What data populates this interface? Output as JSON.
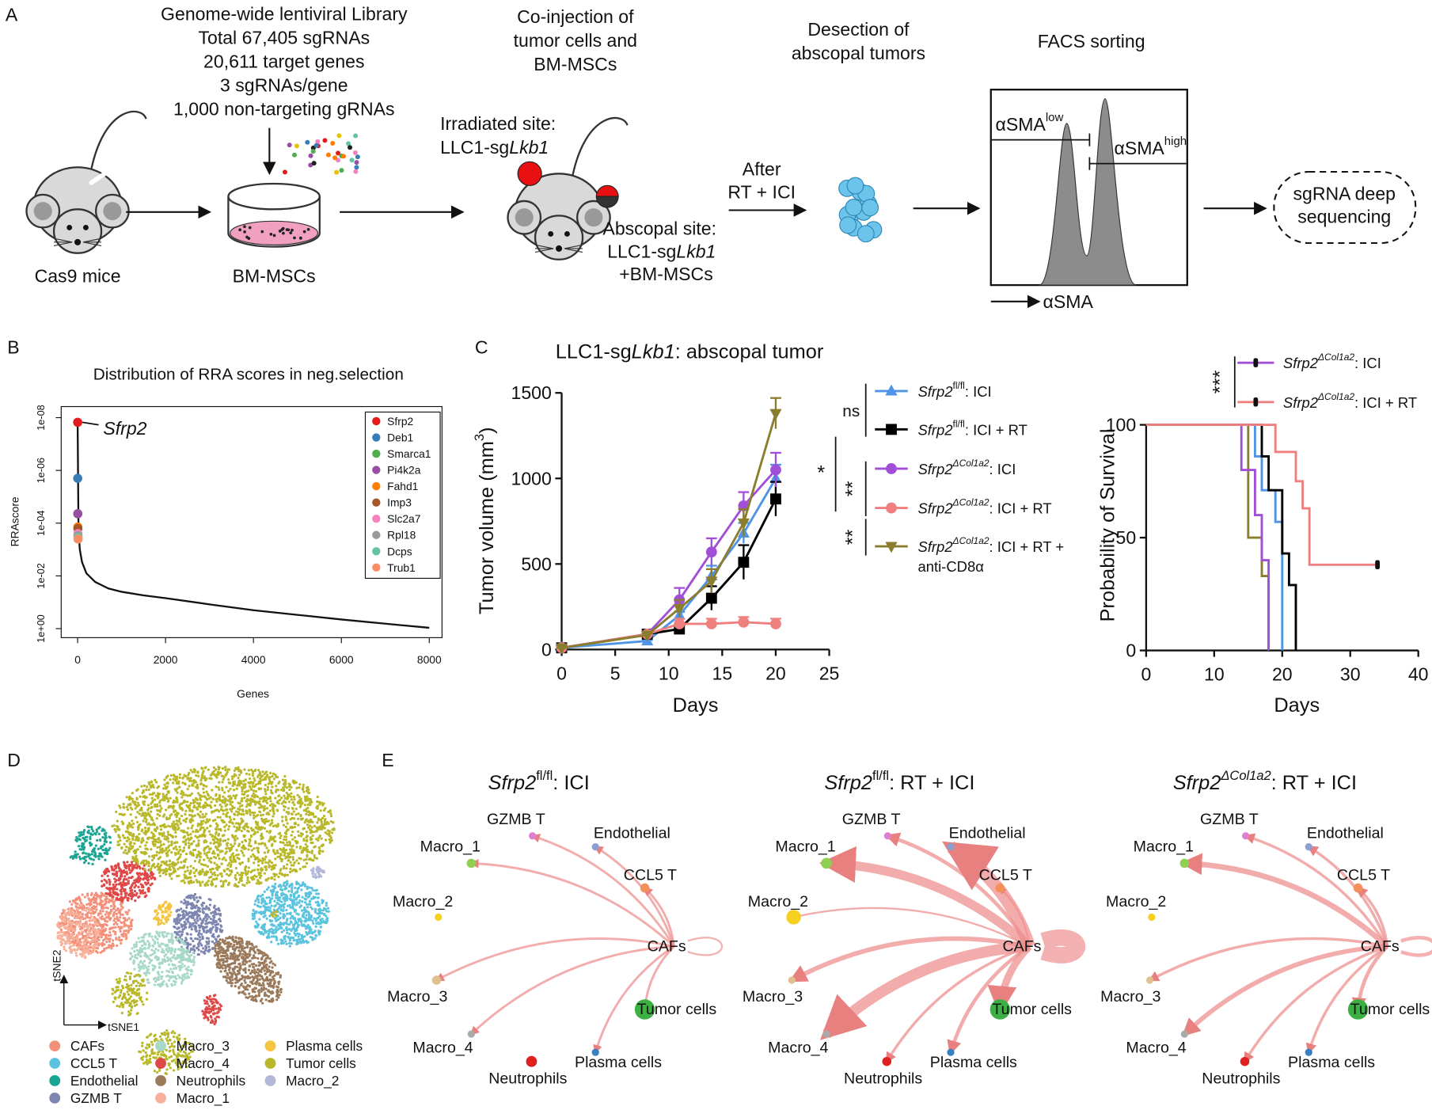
{
  "panel_labels": [
    "A",
    "B",
    "C",
    "D",
    "E"
  ],
  "panel_a": {
    "library": [
      "Genome-wide lentiviral Library",
      "Total 67,405 sgRNAs",
      "20,611 target genes",
      "3 sgRNAs/gene",
      "1,000 non-targeting gRNAs"
    ],
    "cas9": "Cas9 mice",
    "bm": "BM-MSCs",
    "coinjection": [
      "Co-injection of",
      "tumor cells and",
      "BM-MSCs"
    ],
    "irradiated": {
      "label": "Irradiated site:",
      "line": [
        {
          "text": "LLC1-sg"
        },
        {
          "text": "Lkb1",
          "style": "italic"
        }
      ]
    },
    "abscopal": {
      "label": "Abscopal site:",
      "line": [
        {
          "text": "LLC1-sg"
        },
        {
          "text": "Lkb1",
          "style": "italic"
        }
      ],
      "extra": "+BM-MSCs"
    },
    "after": [
      "After",
      "RT + ICI"
    ],
    "dissection": [
      "Desection of",
      "abscopal tumors"
    ],
    "facs": {
      "title": "FACS sorting",
      "low": [
        {
          "text": "αSMA"
        },
        {
          "text": "low",
          "style": "sup"
        }
      ],
      "high": [
        {
          "text": "αSMA"
        },
        {
          "text": "high",
          "style": "sup"
        }
      ],
      "gate_color": "#d62a1e",
      "axis": "αSMA"
    },
    "sequencing": [
      "sgRNA deep",
      "sequencing"
    ]
  },
  "chart_data": [
    {
      "type": "rank",
      "title": "Distribution of RRA scores in neg.selection",
      "xlabel": "Genes",
      "ylabel": "RRAscore",
      "log_y": true,
      "xlim": [
        -374,
        8290
      ],
      "xticks": [
        0,
        2000,
        4000,
        6000,
        8000
      ],
      "ylim": [
        2.2,
        3.8e-09
      ],
      "yticks": [
        {
          "value": 1e-08,
          "label": "1e-08"
        },
        {
          "value": 1e-06,
          "label": "1e-06"
        },
        {
          "value": 0.0001,
          "label": "1e-04"
        },
        {
          "value": 0.01,
          "label": "1e-02"
        },
        {
          "value": 1,
          "label": "1e+00"
        }
      ],
      "curve": {
        "x": [
          0,
          20,
          50,
          100,
          200,
          400,
          700,
          1000,
          1500,
          2000,
          3000,
          4000,
          5000,
          6000,
          7000,
          8000
        ],
        "values": [
          1.5e-08,
          0.0002,
          0.001,
          0.003,
          0.008,
          0.017,
          0.03,
          0.04,
          0.055,
          0.07,
          0.12,
          0.2,
          0.3,
          0.45,
          0.65,
          0.93
        ]
      },
      "series": [
        {
          "name": "Sfrp2",
          "color": "#e41a1c",
          "x": [
            1
          ],
          "values": [
            1.5e-08
          ]
        },
        {
          "name": "Deb1",
          "color": "#377eb8",
          "x": [
            2
          ],
          "values": [
            2e-06
          ]
        },
        {
          "name": "Smarca1",
          "color": "#4daf4a",
          "x": [
            3
          ],
          "values": [
            4.4e-05
          ]
        },
        {
          "name": "Pi4k2a",
          "color": "#984ea3",
          "x": [
            4
          ],
          "values": [
            4.4e-05
          ]
        },
        {
          "name": "Fahd1",
          "color": "#ff7f00",
          "x": [
            5
          ],
          "values": [
            0.00014
          ]
        },
        {
          "name": "Imp3",
          "color": "#a65628",
          "x": [
            6
          ],
          "values": [
            0.00016
          ]
        },
        {
          "name": "Slc2a7",
          "color": "#f781bf",
          "x": [
            7
          ],
          "values": [
            0.00025
          ]
        },
        {
          "name": "Rpl18",
          "color": "#999999",
          "x": [
            8
          ],
          "values": [
            0.0003
          ]
        },
        {
          "name": "Dcps",
          "color": "#66c2a5",
          "x": [
            9
          ],
          "values": [
            0.00035
          ]
        },
        {
          "name": "Trub1",
          "color": "#fc8d62",
          "x": [
            10
          ],
          "values": [
            0.0004
          ]
        }
      ],
      "annotation": "Sfrp2",
      "legend": "top-right"
    },
    {
      "type": "line",
      "title": [
        {
          "text": "LLC1-sg"
        },
        {
          "text": "Lkb1",
          "style": "italic"
        },
        {
          "text": ": abscopal tumor"
        }
      ],
      "xlabel": "Days",
      "ylabel": [
        {
          "text": "Tumor volume (mm"
        },
        {
          "text": "3",
          "style": "sup"
        },
        {
          "text": ")"
        }
      ],
      "xlim": [
        0,
        25
      ],
      "xticks": [
        0,
        5,
        10,
        15,
        20,
        25
      ],
      "ylim": [
        0,
        1500
      ],
      "yticks": [
        0,
        500,
        1000,
        1500
      ],
      "x": [
        0,
        8,
        11,
        14,
        17,
        20
      ],
      "series": [
        {
          "name": [
            {
              "text": "Sfrp2",
              "style": "italic"
            },
            {
              "text": "fl/fl",
              "style": "sup"
            },
            {
              "text": ": ICI"
            }
          ],
          "color": "#4f94e6",
          "marker": "triangle-up",
          "values": [
            10,
            50,
            200,
            430,
            680,
            1000
          ],
          "errors": [
            0,
            5,
            20,
            60,
            60,
            80
          ]
        },
        {
          "name": [
            {
              "text": "Sfrp2",
              "style": "italic"
            },
            {
              "text": "fl/fl",
              "style": "sup"
            },
            {
              "text": ": ICI + RT"
            }
          ],
          "color": "#000000",
          "marker": "square",
          "values": [
            10,
            90,
            120,
            300,
            510,
            880
          ],
          "errors": [
            0,
            10,
            20,
            70,
            100,
            100
          ]
        },
        {
          "name": [
            {
              "text": "Sfrp2",
              "style": "italic"
            },
            {
              "text": "ΔCol1a2",
              "style": "sup-italic"
            },
            {
              "text": ": ICI"
            }
          ],
          "color": "#a24fd8",
          "marker": "circle",
          "values": [
            10,
            90,
            290,
            570,
            840,
            1050
          ],
          "errors": [
            0,
            10,
            70,
            80,
            80,
            100
          ]
        },
        {
          "name": [
            {
              "text": "Sfrp2",
              "style": "italic"
            },
            {
              "text": "ΔCol1a2",
              "style": "sup-italic"
            },
            {
              "text": ": ICI + RT"
            }
          ],
          "color": "#f08080",
          "marker": "circle",
          "values": [
            10,
            90,
            150,
            150,
            160,
            150
          ],
          "errors": [
            0,
            10,
            30,
            30,
            30,
            30
          ]
        },
        {
          "name": [
            {
              "text": "Sfrp2",
              "style": "italic"
            },
            {
              "text": "ΔCol1a2",
              "style": "sup-italic"
            },
            {
              "text": ": ICI + RT +"
            }
          ],
          "name_line2": "anti-CD8α",
          "color": "#8b7d2e",
          "marker": "triangle-down",
          "values": [
            10,
            85,
            240,
            400,
            740,
            1380
          ],
          "errors": [
            0,
            10,
            50,
            70,
            80,
            90
          ]
        }
      ],
      "annotations": [
        "ns",
        "*",
        "**",
        "**"
      ]
    },
    {
      "type": "step",
      "xlabel": "Days",
      "ylabel": "Probability of Survival",
      "xlim": [
        0,
        40
      ],
      "xticks": [
        0,
        10,
        20,
        30,
        40
      ],
      "ylim": [
        0,
        100
      ],
      "yticks": [
        0,
        50,
        100
      ],
      "series": [
        {
          "color": "#8b7d2e",
          "x": [
            0,
            15,
            17,
            18
          ],
          "values": [
            100,
            50,
            33,
            0
          ]
        },
        {
          "name": [
            {
              "text": "Sfrp2",
              "style": "italic"
            },
            {
              "text": "ΔCol1a2",
              "style": "sup-italic"
            },
            {
              "text": ": ICI"
            }
          ],
          "color": "#a24fd8",
          "x": [
            0,
            14,
            16,
            17,
            18
          ],
          "values": [
            100,
            80,
            60,
            40,
            0
          ]
        },
        {
          "color": "#4f94e6",
          "x": [
            0,
            16,
            17,
            19,
            20
          ],
          "values": [
            100,
            86,
            71,
            57,
            0
          ]
        },
        {
          "color": "#000000",
          "x": [
            0,
            17,
            18,
            20,
            21,
            22
          ],
          "values": [
            100,
            86,
            71,
            43,
            29,
            0
          ]
        },
        {
          "name": [
            {
              "text": "Sfrp2",
              "style": "italic"
            },
            {
              "text": "ΔCol1a2",
              "style": "sup-italic"
            },
            {
              "text": ": ICI + RT"
            }
          ],
          "color": "#f08080",
          "x": [
            0,
            19,
            22,
            23,
            24,
            34
          ],
          "values": [
            100,
            88,
            75,
            63,
            38,
            38
          ],
          "censored": true
        }
      ],
      "annotation": "***"
    }
  ],
  "panel_d": {
    "xlabel": "tSNE1",
    "ylabel": "tSNE2",
    "clusters": [
      {
        "name": "CAFs",
        "color": "#f4907a"
      },
      {
        "name": "CCL5 T",
        "color": "#5bc3de"
      },
      {
        "name": "Endothelial",
        "color": "#1aa593"
      },
      {
        "name": "GZMB T",
        "color": "#7d86b0"
      },
      {
        "name": "Macro_3",
        "color": "#a8d8c8"
      },
      {
        "name": "Macro_4",
        "color": "#e04848"
      },
      {
        "name": "Neutrophils",
        "color": "#9b7a5c"
      },
      {
        "name": "Macro_1",
        "color": "#f7b09a"
      },
      {
        "name": "Plasma cells",
        "color": "#f5c542"
      },
      {
        "name": "Tumor cells",
        "color": "#b8b82a"
      },
      {
        "name": "Macro_2",
        "color": "#b4b8d8"
      }
    ]
  },
  "panel_e": {
    "highlight_color": "#e02020",
    "node_colors": [
      "#e07fd0",
      "#8d9fd0",
      "#8fd050",
      "#f4905a",
      "#f5d020",
      "#f4a0a0",
      "#e0c090",
      "#3cb043",
      "#aaaaaa",
      "#3a7fc0",
      "#e02020"
    ],
    "networks": [
      {
        "title": [
          {
            "text": "Sfrp2",
            "style": "italic"
          },
          {
            "text": "fl/fl",
            "style": "sup"
          },
          {
            "text": ": ICI"
          }
        ],
        "nodes": [
          {
            "label": "GZMB T"
          },
          {
            "label": "Endothelial",
            "highlight": true
          },
          {
            "label": "Macro_1"
          },
          {
            "label": "CCL5 T"
          },
          {
            "label": "Macro_2"
          },
          {
            "label": "CAFs"
          },
          {
            "label": "Macro_3"
          },
          {
            "label": "Tumor cells"
          },
          {
            "label": "Macro_4",
            "highlight": true
          },
          {
            "label": "Plasma cells"
          },
          {
            "label": "Neutrophils"
          }
        ]
      },
      {
        "title": [
          {
            "text": "Sfrp2",
            "style": "italic"
          },
          {
            "text": "fl/fl",
            "style": "sup"
          },
          {
            "text": ": RT + ICI"
          }
        ],
        "nodes": [
          {
            "label": "GZMB T"
          },
          {
            "label": "Endothelial",
            "highlight": true
          },
          {
            "label": "Macro_1"
          },
          {
            "label": "CCL5 T"
          },
          {
            "label": "Macro_2"
          },
          {
            "label": "CAFs"
          },
          {
            "label": "Macro_3"
          },
          {
            "label": "Tumor cells"
          },
          {
            "label": "Macro_4",
            "highlight": true
          },
          {
            "label": "Plasma cells"
          },
          {
            "label": "Neutrophils"
          }
        ]
      },
      {
        "title": [
          {
            "text": "Sfrp2",
            "style": "italic"
          },
          {
            "text": "ΔCol1a2",
            "style": "sup-italic"
          },
          {
            "text": ": RT + ICI"
          }
        ],
        "nodes": [
          {
            "label": "GZMB T"
          },
          {
            "label": "Endothelial",
            "highlight": true
          },
          {
            "label": "Macro_1"
          },
          {
            "label": "CCL5 T"
          },
          {
            "label": "Macro_2"
          },
          {
            "label": "CAFs"
          },
          {
            "label": "Macro_3"
          },
          {
            "label": "Tumor cells"
          },
          {
            "label": "Macro_4",
            "highlight": true
          },
          {
            "label": "Plasma cells"
          },
          {
            "label": "Neutrophils"
          }
        ]
      }
    ]
  }
}
